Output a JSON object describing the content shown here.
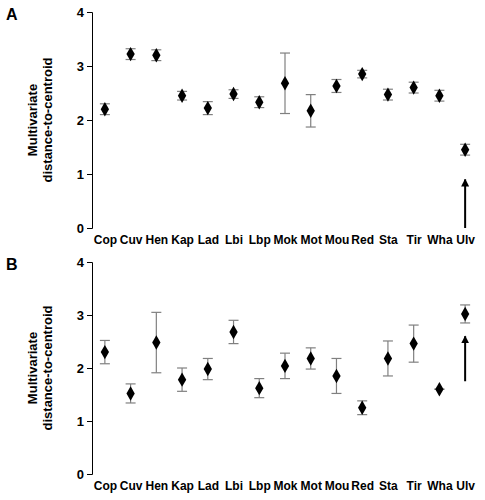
{
  "chart_data": [
    {
      "type": "scatter",
      "title": "A",
      "y_label": "Multivariate distance-to-centroid",
      "categories": [
        "Cop",
        "Cuv",
        "Hen",
        "Kap",
        "Lad",
        "Lbi",
        "Lbp",
        "Mok",
        "Mot",
        "Mou",
        "Red",
        "Sta",
        "Tir",
        "Wha",
        "Ulv"
      ],
      "values": [
        2.2,
        3.22,
        3.2,
        2.45,
        2.22,
        2.48,
        2.33,
        2.68,
        2.17,
        2.63,
        2.85,
        2.47,
        2.6,
        2.45,
        1.45
      ],
      "errors": [
        0.1,
        0.1,
        0.1,
        0.08,
        0.12,
        0.08,
        0.1,
        0.56,
        0.3,
        0.12,
        0.07,
        0.1,
        0.1,
        0.1,
        0.1
      ],
      "arrow": {
        "category": "Ulv",
        "from": 0,
        "to": 0.9
      },
      "color": "#000000",
      "marker": "diamond",
      "ylim": [
        0,
        4
      ],
      "yticks": [
        0,
        1,
        2,
        3,
        4
      ]
    },
    {
      "type": "scatter",
      "title": "B",
      "y_label": "Multivariate distance-to-centroid",
      "categories": [
        "Cop",
        "Cuv",
        "Hen",
        "Kap",
        "Lad",
        "Lbi",
        "Lbp",
        "Mok",
        "Mot",
        "Mou",
        "Red",
        "Sta",
        "Tir",
        "Wha",
        "Ulv"
      ],
      "values": [
        2.3,
        1.52,
        2.48,
        1.78,
        1.98,
        2.68,
        1.62,
        2.04,
        2.18,
        1.85,
        1.25,
        2.18,
        2.46,
        1.6,
        3.02
      ],
      "errors": [
        0.22,
        0.18,
        0.57,
        0.22,
        0.2,
        0.22,
        0.18,
        0.24,
        0.2,
        0.33,
        0.13,
        0.33,
        0.35,
        0,
        0.17
      ],
      "arrow": {
        "category": "Ulv",
        "from": 1.75,
        "to": 2.6
      },
      "color": "#000000",
      "marker": "diamond",
      "ylim": [
        0,
        4
      ],
      "yticks": [
        0,
        1,
        2,
        3,
        4
      ]
    }
  ]
}
